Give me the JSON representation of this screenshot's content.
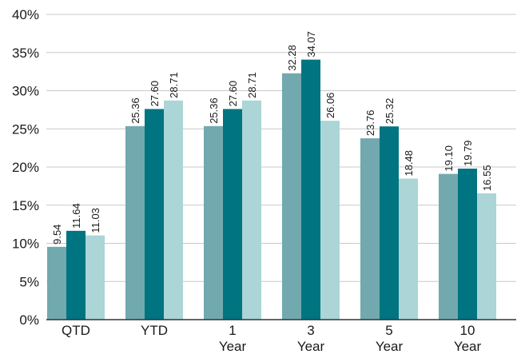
{
  "chart_data": {
    "type": "bar",
    "title": "",
    "xlabel": "",
    "ylabel": "",
    "ylim": [
      0,
      40
    ],
    "y_ticks": [
      "0%",
      "5%",
      "10%",
      "15%",
      "20%",
      "25%",
      "30%",
      "35%",
      "40%"
    ],
    "y_tick_values": [
      0,
      5,
      10,
      15,
      20,
      25,
      30,
      35,
      40
    ],
    "grid": true,
    "legend": "none",
    "categories": [
      [
        "QTD"
      ],
      [
        "YTD"
      ],
      [
        "1",
        "Year"
      ],
      [
        "3",
        "Year"
      ],
      [
        "5",
        "Year"
      ],
      [
        "10",
        "Year"
      ]
    ],
    "series": [
      {
        "color": "#72a9ae",
        "values": [
          9.54,
          25.36,
          25.36,
          32.28,
          23.76,
          19.1
        ],
        "labels": [
          "9.54",
          "25.36",
          "25.36",
          "32.28",
          "23.76",
          "19.10"
        ]
      },
      {
        "color": "#007481",
        "values": [
          11.64,
          27.6,
          27.6,
          34.07,
          25.32,
          19.79
        ],
        "labels": [
          "11.64",
          "27.60",
          "27.60",
          "34.07",
          "25.32",
          "19.79"
        ]
      },
      {
        "color": "#abd5d6",
        "values": [
          11.03,
          28.71,
          28.71,
          26.06,
          18.48,
          16.55
        ],
        "labels": [
          "11.03",
          "28.71",
          "28.71",
          "26.06",
          "18.48",
          "16.55"
        ]
      }
    ]
  }
}
